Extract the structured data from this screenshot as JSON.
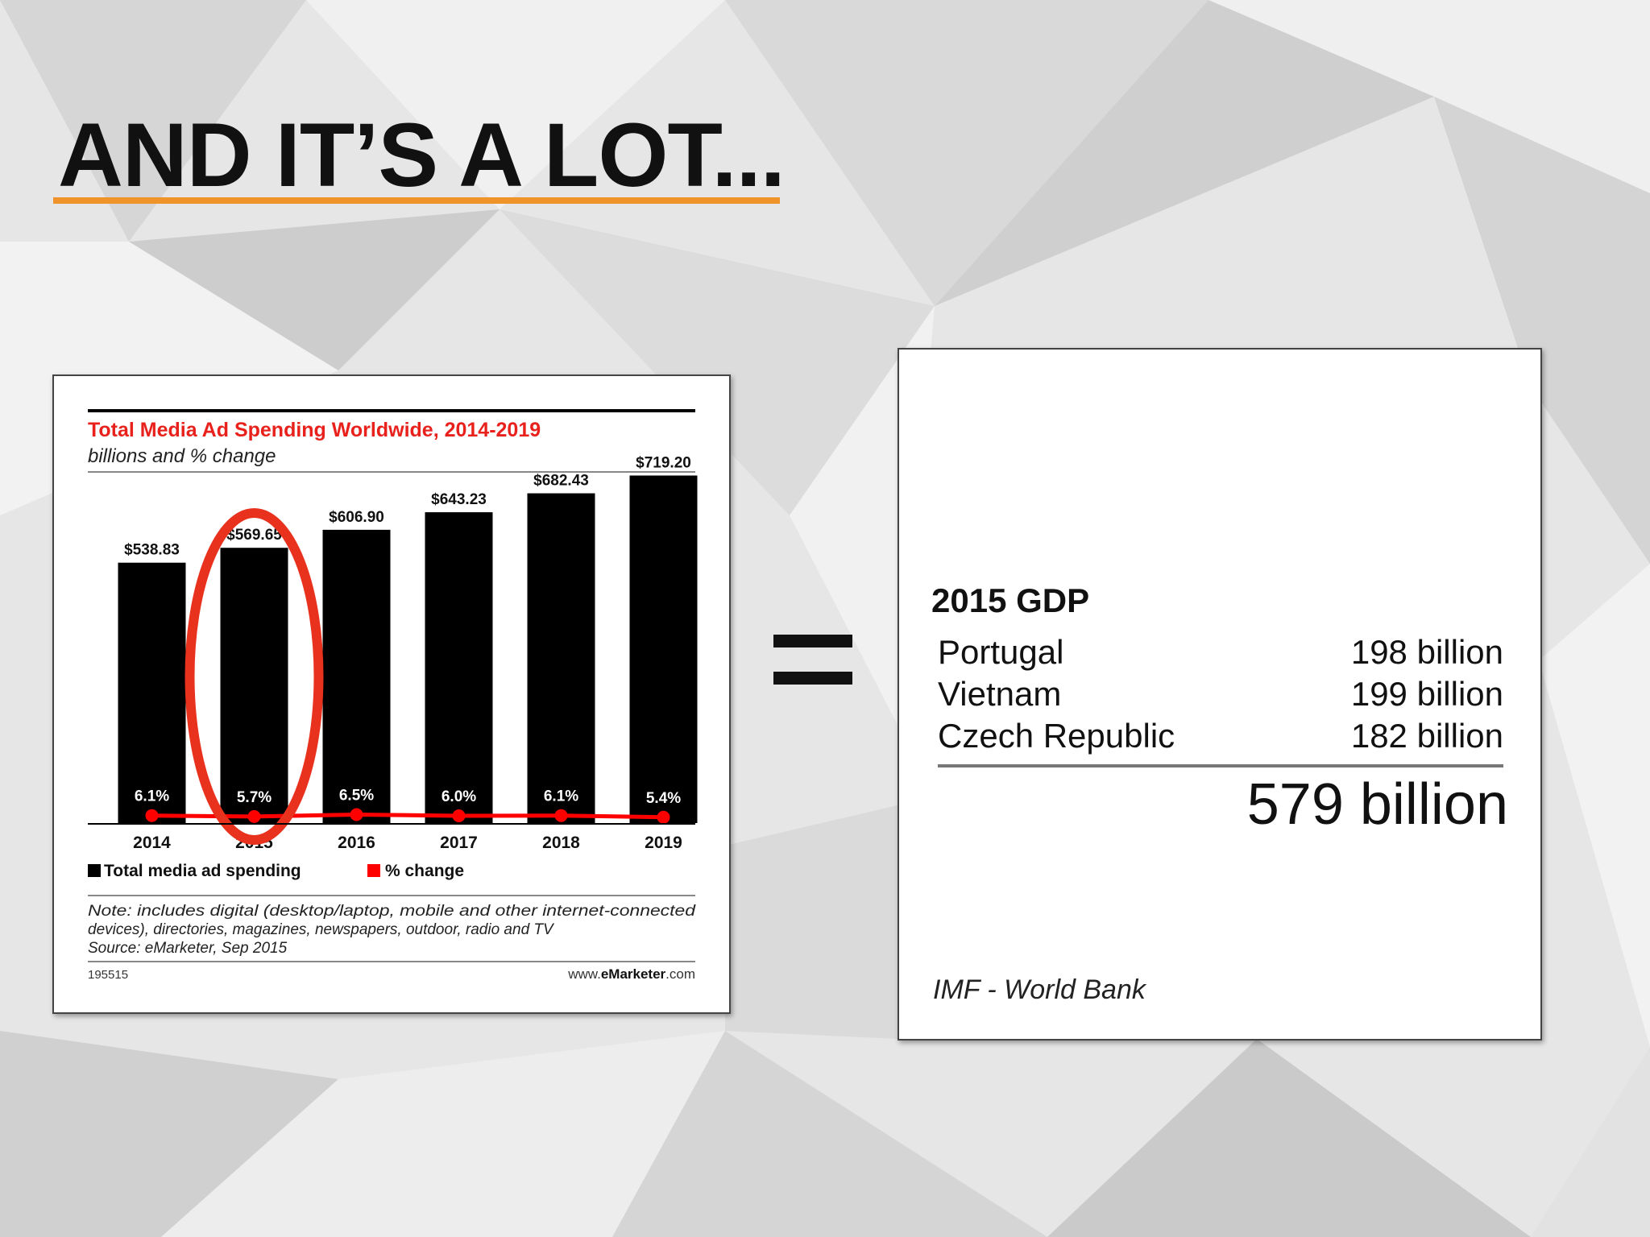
{
  "slide": {
    "title": "AND IT’S A LOT...",
    "accent_color": "#f0932b"
  },
  "chart_data": {
    "type": "bar",
    "title": "Total Media Ad Spending Worldwide, 2014-2019",
    "subtitle": "billions and % change",
    "categories": [
      "2014",
      "2015",
      "2016",
      "2017",
      "2018",
      "2019"
    ],
    "series": [
      {
        "name": "Total media ad spending",
        "type": "bar",
        "color": "#000000",
        "values": [
          538.83,
          569.65,
          606.9,
          643.23,
          682.43,
          719.2
        ],
        "labels": [
          "$538.83",
          "$569.65",
          "$606.90",
          "$643.23",
          "$682.43",
          "$719.20"
        ]
      },
      {
        "name": "% change",
        "type": "line",
        "color": "#ff0000",
        "values": [
          6.1,
          5.7,
          6.5,
          6.0,
          6.1,
          5.4
        ],
        "labels": [
          "6.1%",
          "5.7%",
          "6.5%",
          "6.0%",
          "6.1%",
          "5.4%"
        ]
      }
    ],
    "legend_placement": "bottom-left",
    "highlight": {
      "category": "2015",
      "shape": "ellipse",
      "color": "#e8321e"
    },
    "note_lines": [
      "Note: includes digital (desktop/laptop, mobile and other internet-connected",
      "devices), directories, magazines, newspapers, outdoor, radio and TV",
      "Source: eMarketer, Sep 2015"
    ],
    "chart_id": "195515",
    "branding": {
      "prefix": "www.",
      "brand": "eMarketer",
      "suffix": ".com",
      "brand_color": "#e8321e"
    }
  },
  "gdp": {
    "title": "2015 GDP",
    "rows": [
      {
        "country": "Portugal",
        "value": "198 billion"
      },
      {
        "country": "Vietnam",
        "value": "199 billion"
      },
      {
        "country": "Czech Republic",
        "value": "182 billion"
      }
    ],
    "total": "579 billion",
    "source": "IMF - World Bank"
  }
}
